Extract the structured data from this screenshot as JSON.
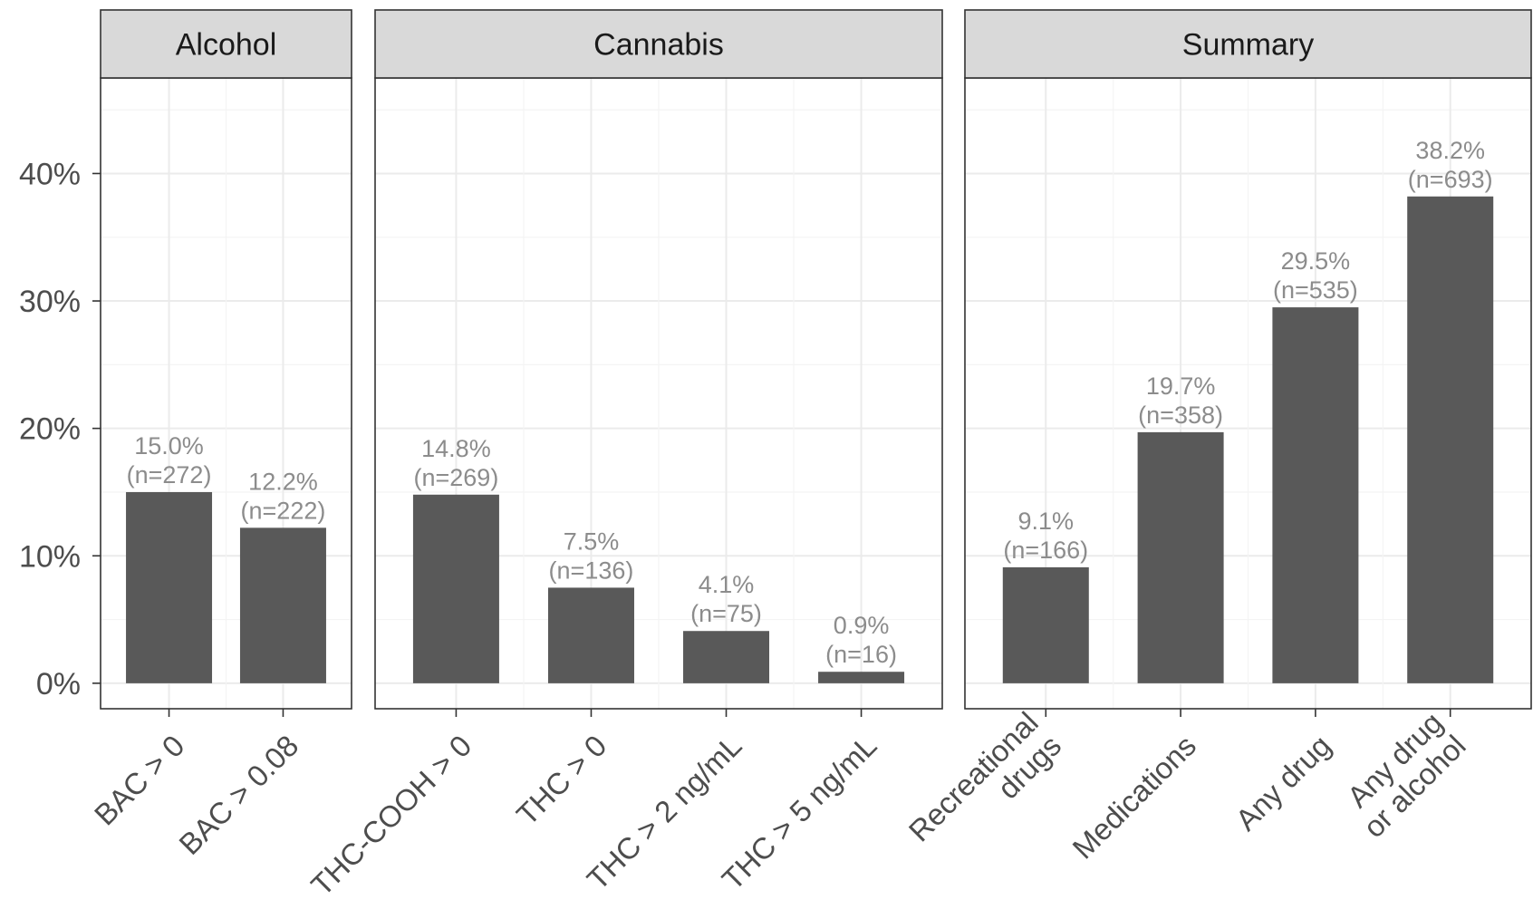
{
  "chart_data": {
    "type": "bar",
    "ylim": [
      -2.0,
      47.5
    ],
    "y_ticks": [
      {
        "value": 0,
        "label": "0%"
      },
      {
        "value": 10,
        "label": "10%"
      },
      {
        "value": 20,
        "label": "20%"
      },
      {
        "value": 30,
        "label": "30%"
      },
      {
        "value": 40,
        "label": "40%"
      }
    ],
    "grid": true,
    "colors": {
      "bar": "#595959",
      "strip": "#d9d9d9",
      "label": "#8c8c8c"
    },
    "panels": [
      {
        "name": "Alcohol",
        "bars": [
          {
            "label": [
              "BAC > 0"
            ],
            "value": 15.0,
            "pct": "15.0%",
            "n": "(n=272)"
          },
          {
            "label": [
              "BAC > 0.08"
            ],
            "value": 12.2,
            "pct": "12.2%",
            "n": "(n=222)"
          }
        ]
      },
      {
        "name": "Cannabis",
        "bars": [
          {
            "label": [
              "THC-COOH > 0"
            ],
            "value": 14.8,
            "pct": "14.8%",
            "n": "(n=269)"
          },
          {
            "label": [
              "THC > 0"
            ],
            "value": 7.5,
            "pct": "7.5%",
            "n": "(n=136)"
          },
          {
            "label": [
              "THC > 2 ng/mL"
            ],
            "value": 4.1,
            "pct": "4.1%",
            "n": "(n=75)"
          },
          {
            "label": [
              "THC > 5 ng/mL"
            ],
            "value": 0.9,
            "pct": "0.9%",
            "n": "(n=16)"
          }
        ]
      },
      {
        "name": "Summary",
        "bars": [
          {
            "label": [
              "Recreational",
              "drugs"
            ],
            "value": 9.1,
            "pct": "9.1%",
            "n": "(n=166)"
          },
          {
            "label": [
              "Medications"
            ],
            "value": 19.7,
            "pct": "19.7%",
            "n": "(n=358)"
          },
          {
            "label": [
              "Any drug"
            ],
            "value": 29.5,
            "pct": "29.5%",
            "n": "(n=535)"
          },
          {
            "label": [
              "Any drug",
              "or alcohol"
            ],
            "value": 38.2,
            "pct": "38.2%",
            "n": "(n=693)"
          }
        ]
      }
    ]
  }
}
